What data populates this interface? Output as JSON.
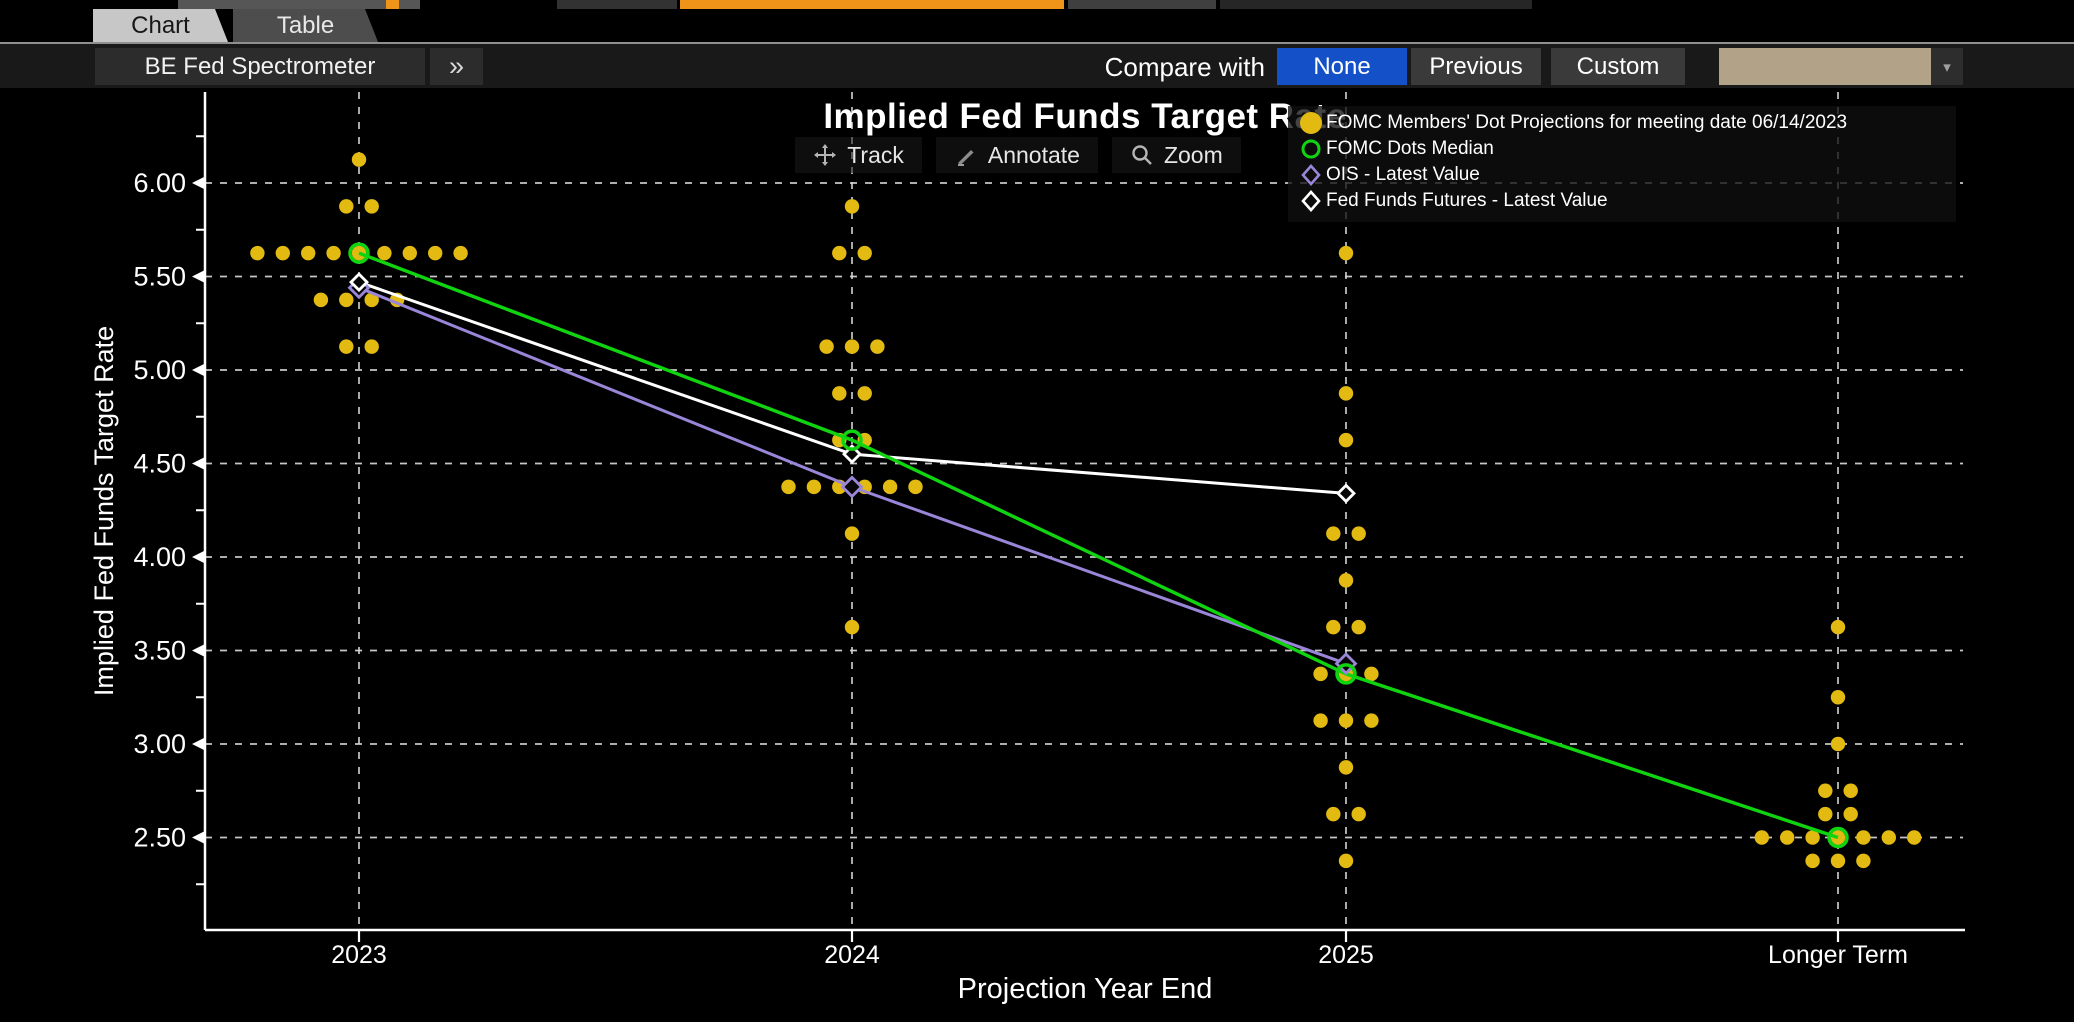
{
  "top_fragments": {
    "colors": {
      "gray": "#565656",
      "dark": "#323232",
      "orange": "#ef9418",
      "dim": "#262626"
    }
  },
  "tabs": [
    {
      "label": "Chart",
      "active": true
    },
    {
      "label": "Table",
      "active": false
    }
  ],
  "toolbar": {
    "left_button": "BE Fed Spectrometer",
    "expand_button": "»",
    "compare_label": "Compare with",
    "compare_options": [
      {
        "label": "None",
        "selected": true
      },
      {
        "label": "Previous",
        "selected": false
      },
      {
        "label": "Custom",
        "selected": false
      }
    ],
    "dropdown_value": "",
    "dropdown_arrow": "▾",
    "selected_color": "#1451c8",
    "dropdown_color": "#b2a288"
  },
  "chart_tools": [
    {
      "label": "Track",
      "icon": "crosshair-icon"
    },
    {
      "label": "Annotate",
      "icon": "pencil-icon"
    },
    {
      "label": "Zoom",
      "icon": "magnifier-icon"
    }
  ],
  "legend": {
    "items": [
      {
        "label": "FOMC Members' Dot Projections for meeting date 06/14/2023",
        "marker": "filled-circle",
        "color": "#e2ba12"
      },
      {
        "label": "FOMC Dots Median",
        "marker": "open-circle",
        "color": "#11d411"
      },
      {
        "label": "OIS - Latest Value",
        "marker": "open-diamond",
        "color": "#9a86d8"
      },
      {
        "label": "Fed Funds Futures - Latest Value",
        "marker": "open-diamond",
        "color": "#ffffff"
      }
    ]
  },
  "chart_data": {
    "type": "scatter",
    "title": "Implied Fed Funds Target Rate",
    "xlabel": "Projection Year End",
    "ylabel": "Implied Fed Funds Target Rate",
    "categories": [
      "2023",
      "2024",
      "2025",
      "Longer Term"
    ],
    "y_ticks": [
      6.0,
      5.5,
      5.0,
      4.5,
      4.0,
      3.5,
      3.0,
      2.5
    ],
    "y_minor_step": 0.25,
    "ylim": [
      2.2,
      6.5
    ],
    "grid": true,
    "legend_position": "top-right",
    "dot_color": "#e2ba12",
    "dots": {
      "2023": [
        {
          "v": 6.125,
          "n": 1
        },
        {
          "v": 5.875,
          "n": 2
        },
        {
          "v": 5.625,
          "n": 9
        },
        {
          "v": 5.375,
          "n": 4
        },
        {
          "v": 5.125,
          "n": 2
        }
      ],
      "2024": [
        {
          "v": 5.875,
          "n": 1
        },
        {
          "v": 5.625,
          "n": 2
        },
        {
          "v": 5.125,
          "n": 3
        },
        {
          "v": 4.875,
          "n": 2
        },
        {
          "v": 4.625,
          "n": 2
        },
        {
          "v": 4.375,
          "n": 6
        },
        {
          "v": 4.125,
          "n": 1
        },
        {
          "v": 3.625,
          "n": 1
        }
      ],
      "2025": [
        {
          "v": 5.625,
          "n": 1
        },
        {
          "v": 4.875,
          "n": 1
        },
        {
          "v": 4.625,
          "n": 1
        },
        {
          "v": 4.125,
          "n": 2
        },
        {
          "v": 3.875,
          "n": 1
        },
        {
          "v": 3.625,
          "n": 2
        },
        {
          "v": 3.375,
          "n": 3
        },
        {
          "v": 3.125,
          "n": 3
        },
        {
          "v": 2.875,
          "n": 1
        },
        {
          "v": 2.625,
          "n": 2
        },
        {
          "v": 2.375,
          "n": 1
        }
      ],
      "Longer Term": [
        {
          "v": 3.625,
          "n": 1
        },
        {
          "v": 3.25,
          "n": 1
        },
        {
          "v": 3.0,
          "n": 1
        },
        {
          "v": 2.75,
          "n": 2
        },
        {
          "v": 2.625,
          "n": 2
        },
        {
          "v": 2.5,
          "n": 7
        },
        {
          "v": 2.375,
          "n": 3
        }
      ]
    },
    "series": [
      {
        "name": "FOMC Dots Median",
        "color": "#11d411",
        "marker": "circle",
        "values": [
          5.625,
          4.625,
          3.375,
          2.5
        ]
      },
      {
        "name": "OIS - Latest Value",
        "color": "#9a86d8",
        "marker": "diamond",
        "values": [
          5.44,
          4.375,
          3.43,
          null
        ]
      },
      {
        "name": "Fed Funds Futures - Latest Value",
        "color": "#ffffff",
        "marker": "diamond",
        "values": [
          5.47,
          4.55,
          4.34,
          null
        ]
      }
    ]
  }
}
